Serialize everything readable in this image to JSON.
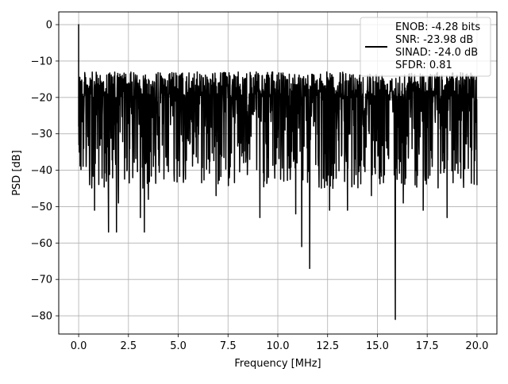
{
  "chart_data": {
    "type": "line",
    "title": "",
    "xlabel": "Frequency [MHz]",
    "ylabel": "PSD [dB]",
    "xlim": [
      -1.0,
      21.0
    ],
    "ylim": [
      -85,
      3.5
    ],
    "xticks": [
      0.0,
      2.5,
      5.0,
      7.5,
      10.0,
      12.5,
      15.0,
      17.5,
      20.0
    ],
    "xtick_labels": [
      "0.0",
      "2.5",
      "5.0",
      "7.5",
      "10.0",
      "12.5",
      "15.0",
      "17.5",
      "20.0"
    ],
    "yticks": [
      0,
      -10,
      -20,
      -30,
      -40,
      -50,
      -60,
      -70,
      -80
    ],
    "ytick_labels": [
      "0",
      "−10",
      "−20",
      "−30",
      "−40",
      "−50",
      "−60",
      "−70",
      "−80"
    ],
    "grid": true,
    "legend_placement": "top-right",
    "series_color": "#000000",
    "series": [
      {
        "legend_lines": [
          "ENOB: -4.28 bits",
          "SNR: -23.98 dB",
          "SINAD: -24.0 dB",
          "SFDR: 0.81"
        ],
        "noise_floor": {
          "x_start": 0.0,
          "x_end": 20.0,
          "upper_envelope_db": -12,
          "typical_low_db": -36
        },
        "peak": {
          "x": 0.0,
          "y": 0.0
        },
        "deep_nulls": [
          {
            "x": 0.25,
            "y": -34
          },
          {
            "x": 0.55,
            "y": -44
          },
          {
            "x": 0.8,
            "y": -51
          },
          {
            "x": 1.5,
            "y": -57
          },
          {
            "x": 1.9,
            "y": -57
          },
          {
            "x": 2.0,
            "y": -49
          },
          {
            "x": 3.1,
            "y": -53
          },
          {
            "x": 3.3,
            "y": -57
          },
          {
            "x": 3.5,
            "y": -48
          },
          {
            "x": 4.8,
            "y": -43
          },
          {
            "x": 6.9,
            "y": -47
          },
          {
            "x": 9.1,
            "y": -53
          },
          {
            "x": 10.3,
            "y": -43
          },
          {
            "x": 10.9,
            "y": -52
          },
          {
            "x": 11.2,
            "y": -61
          },
          {
            "x": 11.6,
            "y": -67
          },
          {
            "x": 12.6,
            "y": -51
          },
          {
            "x": 13.5,
            "y": -51
          },
          {
            "x": 14.7,
            "y": -47
          },
          {
            "x": 15.9,
            "y": -81
          },
          {
            "x": 16.3,
            "y": -49
          },
          {
            "x": 17.3,
            "y": -51
          },
          {
            "x": 18.5,
            "y": -53
          }
        ]
      }
    ]
  }
}
